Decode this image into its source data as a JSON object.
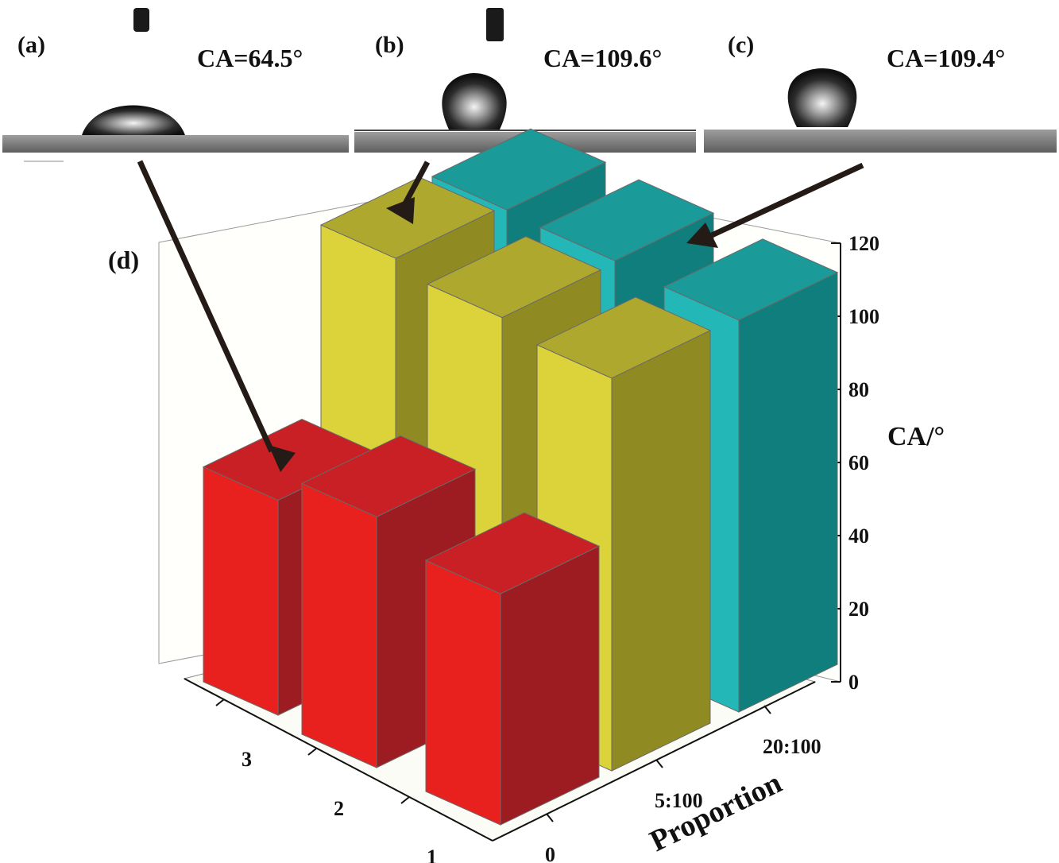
{
  "panels": [
    {
      "label": "(a)",
      "ca_text": "CA=64.5°",
      "contact_angle_deg": 64.5
    },
    {
      "label": "(b)",
      "ca_text": "CA=109.6°",
      "contact_angle_deg": 109.6
    },
    {
      "label": "(c)",
      "ca_text": "CA=109.4°",
      "contact_angle_deg": 109.4
    }
  ],
  "chart_label": "(d)",
  "colors": {
    "series_0": "#e8201e",
    "series_5_100": "#dcd33a",
    "series_20_100": "#24b7b7"
  },
  "chart_data": {
    "type": "bar",
    "subtype": "3d-bar",
    "zlabel": "CA/°",
    "proportion_label": "Proportion",
    "proportion_categories": [
      "0",
      "5:100",
      "20:100"
    ],
    "sample_categories": [
      "1",
      "2",
      "3"
    ],
    "zlim": [
      0,
      120
    ],
    "z_ticks": [
      "0",
      "20",
      "40",
      "60",
      "80",
      "100",
      "120"
    ],
    "series": [
      {
        "proportion": "0",
        "values": [
          64.5,
          70,
          60
        ]
      },
      {
        "proportion": "5:100",
        "values": [
          109.6,
          111,
          112
        ]
      },
      {
        "proportion": "20:100",
        "values": [
          109.4,
          110,
          110
        ]
      }
    ]
  }
}
